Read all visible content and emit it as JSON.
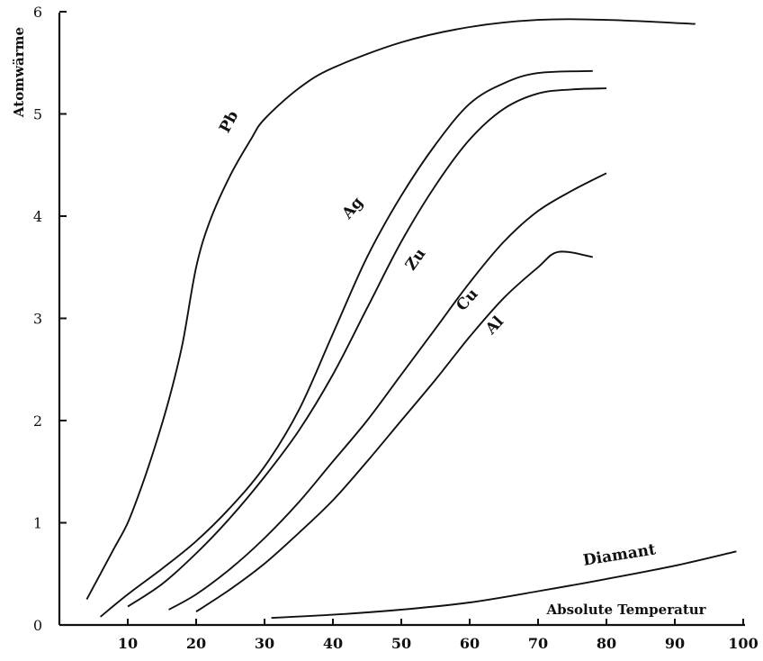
{
  "chart_data": {
    "type": "line",
    "title": "",
    "xlabel": "Absolute Temperatur",
    "ylabel": "Atomwärme",
    "xlim": [
      0,
      100
    ],
    "ylim": [
      0,
      6
    ],
    "x_ticks": [
      10,
      20,
      30,
      40,
      50,
      60,
      70,
      80,
      90,
      100
    ],
    "y_ticks": [
      0,
      1,
      2,
      3,
      4,
      5,
      6
    ],
    "grid": false,
    "series": [
      {
        "name": "Pb",
        "points": [
          [
            4,
            0.25
          ],
          [
            6,
            0.5
          ],
          [
            8,
            0.75
          ],
          [
            10,
            1.0
          ],
          [
            12,
            1.35
          ],
          [
            14,
            1.75
          ],
          [
            16,
            2.2
          ],
          [
            18,
            2.75
          ],
          [
            20,
            3.5
          ],
          [
            22,
            3.95
          ],
          [
            25,
            4.4
          ],
          [
            28,
            4.75
          ],
          [
            30,
            4.95
          ],
          [
            35,
            5.25
          ],
          [
            40,
            5.45
          ],
          [
            50,
            5.7
          ],
          [
            60,
            5.85
          ],
          [
            70,
            5.92
          ],
          [
            80,
            5.92
          ],
          [
            93,
            5.88
          ]
        ]
      },
      {
        "name": "Ag",
        "points": [
          [
            6,
            0.08
          ],
          [
            10,
            0.3
          ],
          [
            15,
            0.55
          ],
          [
            20,
            0.82
          ],
          [
            25,
            1.15
          ],
          [
            30,
            1.55
          ],
          [
            35,
            2.1
          ],
          [
            40,
            2.85
          ],
          [
            45,
            3.6
          ],
          [
            50,
            4.2
          ],
          [
            55,
            4.7
          ],
          [
            60,
            5.1
          ],
          [
            65,
            5.3
          ],
          [
            70,
            5.4
          ],
          [
            78,
            5.42
          ]
        ]
      },
      {
        "name": "Zu",
        "points": [
          [
            10,
            0.18
          ],
          [
            15,
            0.4
          ],
          [
            20,
            0.7
          ],
          [
            25,
            1.05
          ],
          [
            30,
            1.45
          ],
          [
            35,
            1.9
          ],
          [
            40,
            2.45
          ],
          [
            45,
            3.1
          ],
          [
            50,
            3.75
          ],
          [
            55,
            4.3
          ],
          [
            60,
            4.75
          ],
          [
            65,
            5.05
          ],
          [
            70,
            5.2
          ],
          [
            75,
            5.24
          ],
          [
            80,
            5.25
          ]
        ]
      },
      {
        "name": "Cu",
        "points": [
          [
            16,
            0.15
          ],
          [
            20,
            0.3
          ],
          [
            25,
            0.55
          ],
          [
            30,
            0.85
          ],
          [
            35,
            1.2
          ],
          [
            40,
            1.6
          ],
          [
            45,
            2.0
          ],
          [
            50,
            2.45
          ],
          [
            55,
            2.9
          ],
          [
            60,
            3.35
          ],
          [
            65,
            3.75
          ],
          [
            70,
            4.05
          ],
          [
            75,
            4.25
          ],
          [
            80,
            4.42
          ]
        ]
      },
      {
        "name": "Al",
        "points": [
          [
            20,
            0.13
          ],
          [
            25,
            0.35
          ],
          [
            30,
            0.6
          ],
          [
            35,
            0.9
          ],
          [
            40,
            1.22
          ],
          [
            45,
            1.6
          ],
          [
            50,
            2.0
          ],
          [
            55,
            2.4
          ],
          [
            60,
            2.82
          ],
          [
            65,
            3.2
          ],
          [
            70,
            3.5
          ],
          [
            73,
            3.65
          ],
          [
            78,
            3.6
          ]
        ]
      },
      {
        "name": "Diamant",
        "points": [
          [
            31,
            0.07
          ],
          [
            40,
            0.1
          ],
          [
            50,
            0.15
          ],
          [
            60,
            0.22
          ],
          [
            70,
            0.33
          ],
          [
            80,
            0.45
          ],
          [
            90,
            0.58
          ],
          [
            99,
            0.72
          ]
        ]
      }
    ]
  }
}
